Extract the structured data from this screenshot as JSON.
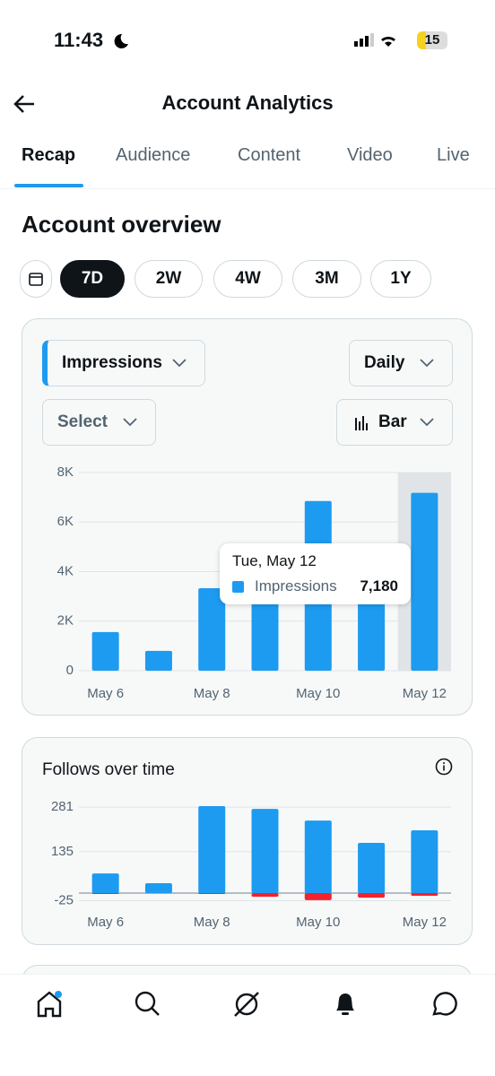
{
  "status_bar": {
    "time": "11:43",
    "battery": "15"
  },
  "header": {
    "title": "Account Analytics"
  },
  "tabs": [
    "Recap",
    "Audience",
    "Content",
    "Video",
    "Live"
  ],
  "section_title": "Account overview",
  "ranges": [
    "7D",
    "2W",
    "4W",
    "3M",
    "1Y"
  ],
  "controls": {
    "metric": "Impressions",
    "interval": "Daily",
    "compare": "Select",
    "chart_style": "Bar"
  },
  "chart_data": [
    {
      "type": "bar",
      "categories": [
        "May 6",
        null,
        "May 8",
        null,
        "May 10",
        null,
        "May 12"
      ],
      "series": [
        {
          "name": "Impressions",
          "color": "#1d9bf0",
          "values": [
            1560,
            800,
            3330,
            3000,
            6850,
            3050,
            7180
          ]
        }
      ],
      "ylim": [
        0,
        8000
      ],
      "yticks": [
        0,
        {
          "value": 2000,
          "label": "2K"
        },
        {
          "value": 4000,
          "label": "4K"
        },
        {
          "value": 6000,
          "label": "6K"
        },
        {
          "value": 8000,
          "label": "8K"
        }
      ],
      "grid": true,
      "tooltip": {
        "title": "Tue, May 12",
        "series": "Impressions",
        "value_label": "7,180"
      }
    },
    {
      "type": "stacked-bar",
      "title": "Follows over time",
      "categories": [
        "May 6",
        null,
        "May 8",
        null,
        "May 10",
        null,
        "May 12"
      ],
      "series": [
        {
          "color": "#1d9bf0",
          "values": [
            64,
            32,
            284,
            275,
            237,
            164,
            205
          ]
        },
        {
          "color": "#f4212e",
          "values": [
            -3,
            -1,
            -3,
            -12,
            -23,
            -15,
            -9
          ]
        }
      ],
      "ylim": [
        -25,
        290
      ],
      "yticks": [
        -25,
        135,
        281
      ],
      "grid": true
    }
  ]
}
